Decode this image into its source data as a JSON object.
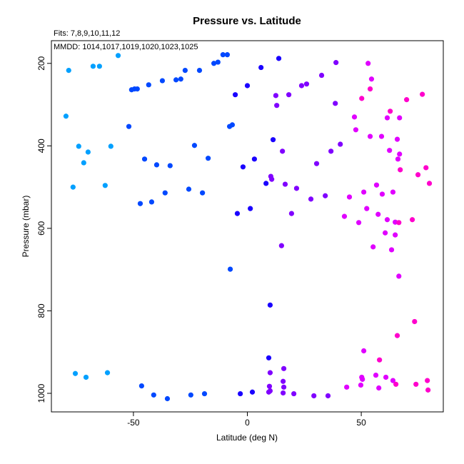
{
  "chart_data": {
    "type": "scatter",
    "title": "Pressure vs. Latitude",
    "subtitle": "Fits: 7,8,9,10,11,12",
    "annotation": "MMDD: 1014,1017,1019,1020,1023,1025",
    "xlabel": "Latitude (deg N)",
    "ylabel": "Pressure (mbar)",
    "xlim": [
      -86,
      86
    ],
    "ylim": [
      1045,
      145
    ],
    "y_reversed": true,
    "grid": false,
    "xticks": [
      {
        "v": -50,
        "label": "-50"
      },
      {
        "v": 0,
        "label": "0"
      },
      {
        "v": 50,
        "label": "50"
      }
    ],
    "yticks": [
      {
        "v": 200,
        "label": "200"
      },
      {
        "v": 400,
        "label": "400"
      },
      {
        "v": 600,
        "label": "600"
      },
      {
        "v": 800,
        "label": "800"
      },
      {
        "v": 1000,
        "label": "1000"
      }
    ],
    "series": [
      {
        "color": "#00a0ff",
        "points": [
          [
            -78.4,
            217
          ],
          [
            -79.6,
            328
          ],
          [
            -74.0,
            401
          ],
          [
            -69.9,
            415
          ],
          [
            -71.8,
            441
          ],
          [
            -59.9,
            401
          ],
          [
            -76.5,
            500
          ],
          [
            -62.4,
            496
          ],
          [
            -67.7,
            207
          ],
          [
            -64.9,
            207
          ],
          [
            -56.7,
            181
          ],
          [
            -75.5,
            952
          ],
          [
            -70.8,
            961
          ],
          [
            -61.4,
            950
          ]
        ]
      },
      {
        "color": "#0048ff",
        "points": [
          [
            -52.0,
            353
          ],
          [
            -50.8,
            264
          ],
          [
            -49.5,
            262
          ],
          [
            -48.3,
            262
          ],
          [
            -43.3,
            252
          ],
          [
            -37.3,
            242
          ],
          [
            -31.3,
            240
          ],
          [
            -29.2,
            238
          ],
          [
            -27.3,
            217
          ],
          [
            -21.0,
            217
          ],
          [
            -14.7,
            200
          ],
          [
            -12.9,
            197
          ],
          [
            -10.7,
            179
          ],
          [
            -8.8,
            179
          ],
          [
            -45.1,
            432
          ],
          [
            -39.8,
            446
          ],
          [
            -33.9,
            448
          ],
          [
            -23.2,
            399
          ],
          [
            -17.2,
            430
          ],
          [
            -47.0,
            540
          ],
          [
            -42.0,
            536
          ],
          [
            -36.1,
            514
          ],
          [
            -25.7,
            505
          ],
          [
            -19.7,
            514
          ],
          [
            -7.8,
            353
          ],
          [
            -6.6,
            349
          ],
          [
            -7.5,
            699
          ],
          [
            -46.4,
            982
          ],
          [
            -41.1,
            1004
          ],
          [
            -35.1,
            1013
          ],
          [
            -24.8,
            1004
          ],
          [
            -18.8,
            1001
          ]
        ]
      },
      {
        "color": "#1a00ff",
        "points": [
          [
            -1.9,
            451
          ],
          [
            3.1,
            432
          ],
          [
            -4.4,
            564
          ],
          [
            1.3,
            552
          ],
          [
            -5.3,
            276
          ],
          [
            0.0,
            254
          ],
          [
            -3.1,
            1001
          ],
          [
            2.2,
            997
          ],
          [
            6.0,
            210
          ],
          [
            13.8,
            188
          ],
          [
            11.3,
            385
          ],
          [
            8.2,
            491
          ],
          [
            10.0,
            786
          ],
          [
            9.4,
            914
          ]
        ]
      },
      {
        "color": "#8000ff",
        "points": [
          [
            12.5,
            278
          ],
          [
            18.2,
            276
          ],
          [
            12.9,
            302
          ],
          [
            23.8,
            254
          ],
          [
            26.0,
            250
          ],
          [
            32.6,
            229
          ],
          [
            38.9,
            198
          ],
          [
            38.6,
            297
          ],
          [
            15.4,
            413
          ],
          [
            36.7,
            413
          ],
          [
            30.4,
            443
          ],
          [
            10.3,
            474
          ],
          [
            10.7,
            481
          ],
          [
            16.6,
            493
          ],
          [
            21.6,
            503
          ],
          [
            27.9,
            529
          ],
          [
            34.2,
            521
          ],
          [
            19.4,
            564
          ],
          [
            15.0,
            642
          ],
          [
            16.0,
            940
          ],
          [
            10.0,
            950
          ],
          [
            15.7,
            971
          ],
          [
            9.7,
            983
          ],
          [
            16.0,
            985
          ],
          [
            10.0,
            994
          ],
          [
            9.4,
            997
          ],
          [
            15.7,
            999
          ],
          [
            20.4,
            1001
          ],
          [
            29.2,
            1006
          ],
          [
            35.4,
            1006
          ],
          [
            40.8,
            396
          ]
        ]
      },
      {
        "color": "#e000ff",
        "points": [
          [
            47.0,
            330
          ],
          [
            47.6,
            361
          ],
          [
            44.8,
            524
          ],
          [
            42.6,
            571
          ],
          [
            43.6,
            985
          ],
          [
            53.0,
            200
          ],
          [
            54.5,
            238
          ],
          [
            53.9,
            377
          ],
          [
            58.9,
            377
          ],
          [
            65.8,
            384
          ],
          [
            62.4,
            411
          ],
          [
            66.8,
            420
          ],
          [
            66.1,
            432
          ],
          [
            56.7,
            495
          ],
          [
            51.1,
            512
          ],
          [
            59.2,
            517
          ],
          [
            63.9,
            512
          ],
          [
            52.4,
            552
          ],
          [
            57.4,
            566
          ],
          [
            48.9,
            586
          ],
          [
            61.4,
            579
          ],
          [
            64.9,
            585
          ],
          [
            60.5,
            611
          ],
          [
            64.9,
            616
          ],
          [
            55.2,
            645
          ],
          [
            63.3,
            652
          ],
          [
            66.5,
            716
          ],
          [
            51.1,
            897
          ],
          [
            56.4,
            956
          ],
          [
            50.2,
            961
          ],
          [
            50.5,
            966
          ],
          [
            60.8,
            961
          ],
          [
            63.9,
            969
          ],
          [
            49.8,
            980
          ],
          [
            57.7,
            987
          ],
          [
            61.4,
            332
          ],
          [
            66.8,
            332
          ]
        ]
      },
      {
        "color": "#ff00cc",
        "points": [
          [
            53.9,
            262
          ],
          [
            50.2,
            285
          ],
          [
            76.8,
            275
          ],
          [
            69.9,
            288
          ],
          [
            62.7,
            316
          ],
          [
            67.1,
            458
          ],
          [
            78.4,
            453
          ],
          [
            74.9,
            470
          ],
          [
            79.9,
            491
          ],
          [
            66.5,
            586
          ],
          [
            72.4,
            579
          ],
          [
            73.4,
            826
          ],
          [
            65.8,
            860
          ],
          [
            58.0,
            919
          ],
          [
            65.2,
            978
          ],
          [
            74.0,
            978
          ],
          [
            79.0,
            969
          ],
          [
            79.3,
            992
          ]
        ]
      }
    ]
  }
}
